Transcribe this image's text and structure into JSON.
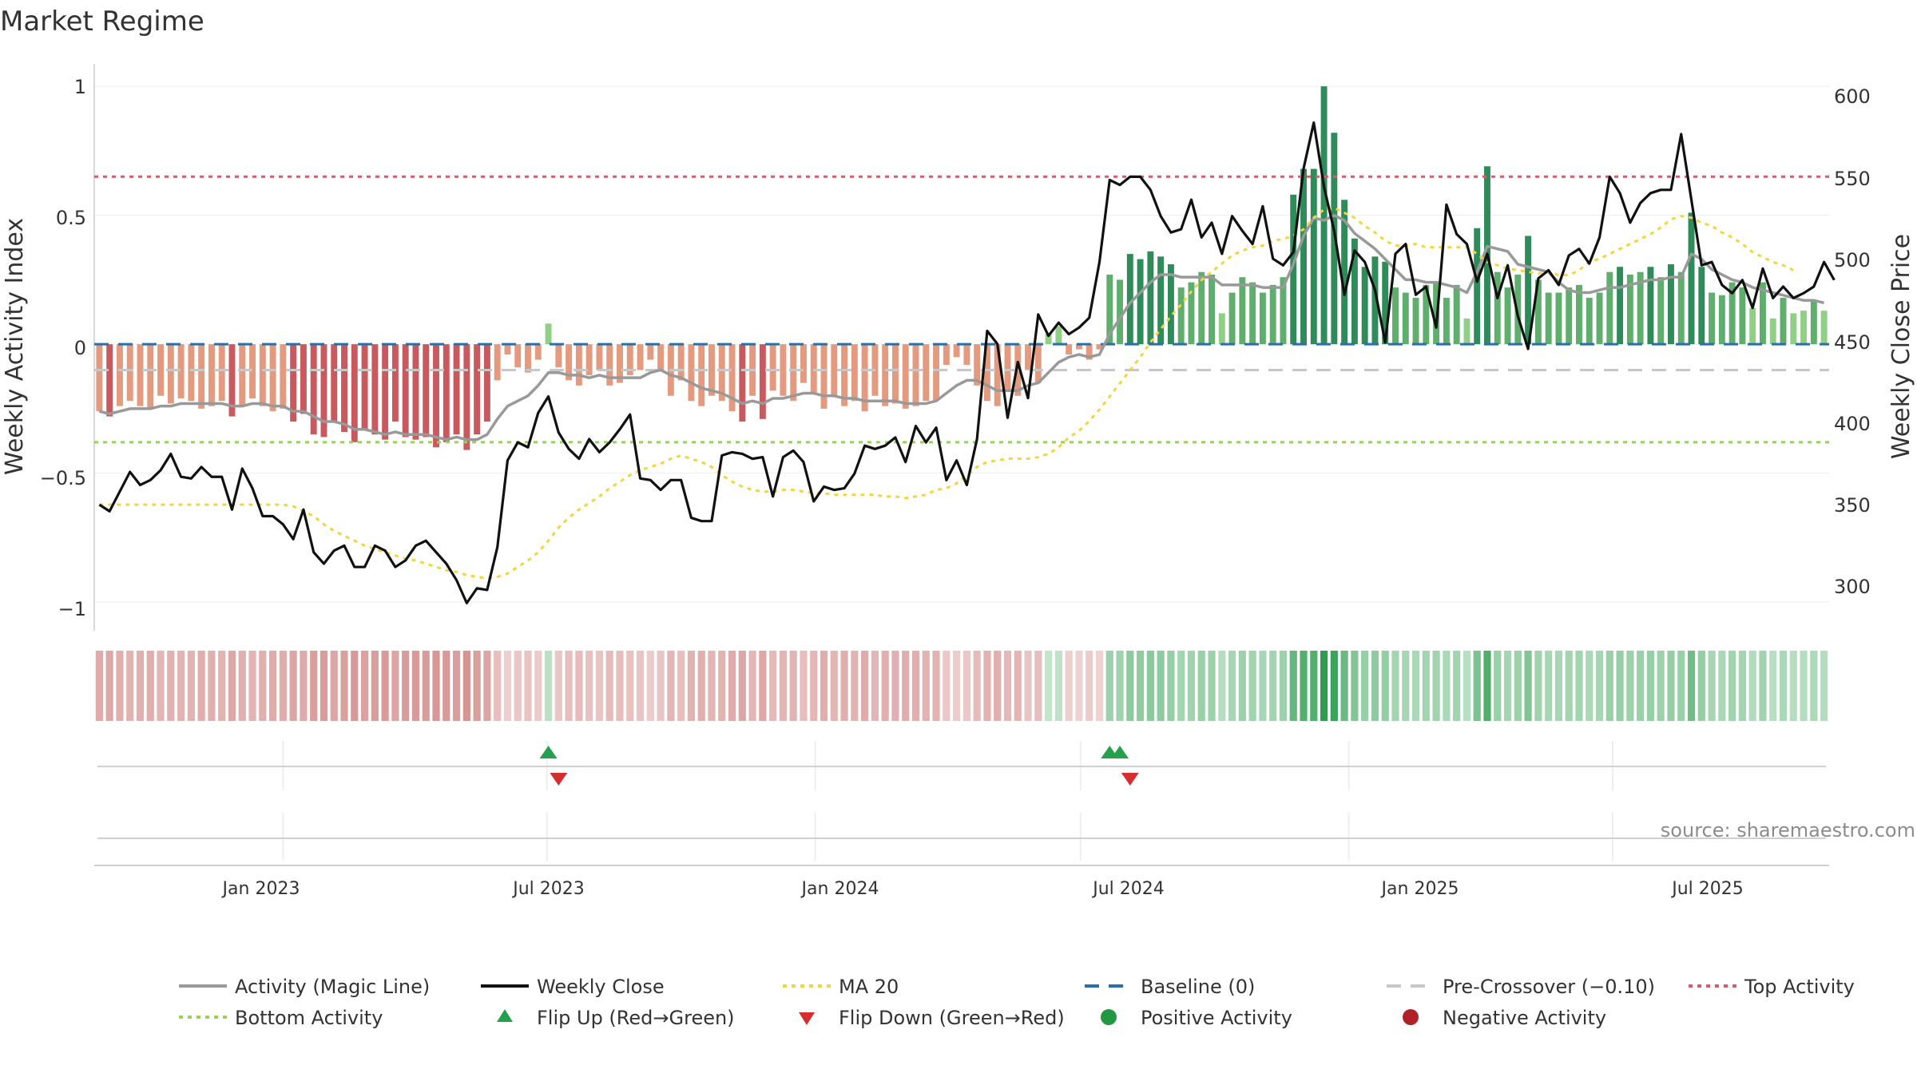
{
  "chart_data": {
    "type": "bar",
    "title": "Market Regime",
    "source": "source: sharemaestro.com",
    "ylabel_left": "Weekly Activity Index",
    "ylabel_right": "Weekly Close Price",
    "left_yticks": [
      "1",
      "0.5",
      "0",
      "−1",
      "−0.5"
    ],
    "left_ytick_values": [
      1,
      0.5,
      0,
      -1,
      -0.5
    ],
    "right_yticks": [
      "600",
      "550",
      "500",
      "450",
      "400",
      "350",
      "300"
    ],
    "right_ytick_values": [
      600,
      550,
      500,
      450,
      400,
      350,
      300
    ],
    "x_ticks": [
      "Jan 2023",
      "Jul 2023",
      "Jan 2024",
      "Jul 2024",
      "Jan 2025",
      "Jul 2025"
    ],
    "x_tick_values": [
      "2023-01-01",
      "2023-07-01",
      "2024-01-01",
      "2024-07-01",
      "2025-01-01",
      "2025-07-01"
    ],
    "ylim_left": [
      -1.08,
      1.05
    ],
    "ylim_right": [
      280,
      615
    ],
    "x_start": "2022-08-28",
    "weeks": 161,
    "activity_index": [
      -0.26,
      -0.28,
      -0.24,
      -0.22,
      -0.24,
      -0.25,
      -0.2,
      -0.23,
      -0.21,
      -0.22,
      -0.25,
      -0.24,
      -0.22,
      -0.28,
      -0.24,
      -0.21,
      -0.24,
      -0.26,
      -0.25,
      -0.3,
      -0.27,
      -0.35,
      -0.36,
      -0.3,
      -0.34,
      -0.38,
      -0.33,
      -0.35,
      -0.37,
      -0.3,
      -0.36,
      -0.37,
      -0.36,
      -0.4,
      -0.38,
      -0.35,
      -0.41,
      -0.35,
      -0.3,
      -0.14,
      -0.04,
      -0.09,
      -0.11,
      -0.06,
      0.08,
      -0.09,
      -0.14,
      -0.16,
      -0.12,
      -0.1,
      -0.16,
      -0.15,
      -0.12,
      -0.1,
      -0.06,
      -0.1,
      -0.2,
      -0.14,
      -0.22,
      -0.24,
      -0.2,
      -0.22,
      -0.26,
      -0.3,
      -0.2,
      -0.29,
      -0.18,
      -0.2,
      -0.22,
      -0.15,
      -0.19,
      -0.25,
      -0.2,
      -0.24,
      -0.22,
      -0.26,
      -0.2,
      -0.24,
      -0.23,
      -0.25,
      -0.24,
      -0.22,
      -0.22,
      -0.08,
      -0.05,
      -0.08,
      -0.16,
      -0.22,
      -0.24,
      -0.18,
      -0.2,
      -0.1,
      -0.15,
      0.04,
      0.07,
      -0.04,
      -0.02,
      -0.06,
      -0.02,
      0.27,
      0.25,
      0.35,
      0.33,
      0.36,
      0.34,
      0.31,
      0.22,
      0.24,
      0.28,
      0.27,
      0.12,
      0.2,
      0.26,
      0.24,
      0.2,
      0.23,
      0.26,
      0.58,
      0.68,
      0.68,
      1.0,
      0.82,
      0.56,
      0.41,
      0.3,
      0.34,
      0.32,
      0.22,
      0.2,
      0.18,
      0.23,
      0.24,
      0.18,
      0.23,
      0.1,
      0.45,
      0.69,
      0.28,
      0.22,
      0.27,
      0.42,
      0.25,
      0.2,
      0.2,
      0.22,
      0.23,
      0.18,
      0.2,
      0.28,
      0.3,
      0.27,
      0.28,
      0.3,
      0.26,
      0.31,
      0.28,
      0.51,
      0.3,
      0.2,
      0.19,
      0.24,
      0.22,
      0.14,
      0.24,
      0.1,
      0.18,
      0.12,
      0.13,
      0.17,
      0.13
    ],
    "magic_line": [
      -0.26,
      -0.27,
      -0.26,
      -0.25,
      -0.25,
      -0.25,
      -0.24,
      -0.24,
      -0.23,
      -0.23,
      -0.23,
      -0.23,
      -0.23,
      -0.24,
      -0.24,
      -0.23,
      -0.23,
      -0.24,
      -0.24,
      -0.26,
      -0.26,
      -0.28,
      -0.3,
      -0.3,
      -0.31,
      -0.33,
      -0.33,
      -0.34,
      -0.35,
      -0.34,
      -0.35,
      -0.35,
      -0.35,
      -0.36,
      -0.37,
      -0.36,
      -0.37,
      -0.37,
      -0.35,
      -0.29,
      -0.24,
      -0.22,
      -0.2,
      -0.16,
      -0.11,
      -0.11,
      -0.12,
      -0.12,
      -0.13,
      -0.12,
      -0.13,
      -0.13,
      -0.13,
      -0.13,
      -0.11,
      -0.1,
      -0.12,
      -0.13,
      -0.15,
      -0.17,
      -0.18,
      -0.19,
      -0.21,
      -0.23,
      -0.22,
      -0.23,
      -0.21,
      -0.21,
      -0.2,
      -0.19,
      -0.19,
      -0.2,
      -0.2,
      -0.21,
      -0.21,
      -0.22,
      -0.22,
      -0.22,
      -0.22,
      -0.23,
      -0.23,
      -0.23,
      -0.22,
      -0.19,
      -0.16,
      -0.14,
      -0.14,
      -0.16,
      -0.18,
      -0.18,
      -0.18,
      -0.16,
      -0.15,
      -0.11,
      -0.07,
      -0.05,
      -0.04,
      -0.05,
      -0.04,
      0.04,
      0.1,
      0.16,
      0.2,
      0.24,
      0.27,
      0.27,
      0.26,
      0.26,
      0.26,
      0.26,
      0.23,
      0.23,
      0.23,
      0.23,
      0.22,
      0.22,
      0.22,
      0.31,
      0.42,
      0.49,
      0.48,
      0.5,
      0.48,
      0.43,
      0.4,
      0.37,
      0.33,
      0.29,
      0.25,
      0.25,
      0.24,
      0.24,
      0.23,
      0.22,
      0.2,
      0.28,
      0.38,
      0.37,
      0.36,
      0.31,
      0.3,
      0.29,
      0.28,
      0.24,
      0.21,
      0.2,
      0.2,
      0.21,
      0.22,
      0.22,
      0.23,
      0.24,
      0.25,
      0.25,
      0.26,
      0.26,
      0.35,
      0.33,
      0.29,
      0.27,
      0.25,
      0.24,
      0.22,
      0.21,
      0.2,
      0.19,
      0.18,
      0.17,
      0.17,
      0.16
    ],
    "weekly_close": [
      352,
      348,
      360,
      372,
      364,
      367,
      373,
      383,
      369,
      368,
      375,
      369,
      369,
      349,
      374,
      362,
      345,
      345,
      340,
      331,
      349,
      323,
      316,
      324,
      327,
      314,
      314,
      327,
      324,
      314,
      318,
      327,
      330,
      323,
      316,
      306,
      292,
      301,
      300,
      326,
      379,
      390,
      387,
      408,
      418,
      396,
      386,
      380,
      392,
      384,
      390,
      398,
      407,
      368,
      367,
      361,
      367,
      367,
      344,
      342,
      342,
      382,
      384,
      383,
      380,
      381,
      357,
      381,
      385,
      378,
      354,
      363,
      361,
      362,
      371,
      388,
      386,
      388,
      393,
      378,
      400,
      390,
      399,
      367,
      379,
      364,
      392,
      458,
      450,
      405,
      439,
      417,
      468,
      455,
      463,
      456,
      460,
      466,
      500,
      550,
      547,
      552,
      552,
      544,
      528,
      518,
      520,
      538,
      515,
      524,
      505,
      528,
      519,
      511,
      534,
      502,
      498,
      506,
      557,
      585,
      546,
      519,
      480,
      507,
      500,
      483,
      451,
      505,
      511,
      480,
      485,
      460,
      535,
      517,
      511,
      488,
      505,
      478,
      498,
      467,
      447,
      490,
      495,
      486,
      504,
      508,
      499,
      515,
      552,
      542,
      524,
      536,
      542,
      544,
      544,
      578,
      538,
      498,
      500,
      486,
      481,
      489,
      472,
      496,
      478,
      485,
      478,
      481,
      485,
      500,
      489
    ],
    "ma20": [
      352,
      352,
      352,
      352,
      352,
      352,
      352,
      352,
      352,
      352,
      352,
      352,
      352,
      352,
      352,
      352,
      352,
      352,
      352,
      351,
      348,
      345,
      340,
      336,
      333,
      330,
      327,
      325,
      323,
      321,
      319,
      318,
      316,
      314,
      312,
      311,
      309,
      308,
      307,
      308,
      310,
      314,
      318,
      323,
      330,
      338,
      344,
      349,
      353,
      357,
      362,
      366,
      370,
      373,
      375,
      377,
      380,
      382,
      380,
      378,
      375,
      370,
      366,
      363,
      361,
      360,
      360,
      361,
      361,
      360,
      359,
      359,
      358,
      358,
      358,
      358,
      358,
      357,
      357,
      356,
      357,
      358,
      361,
      362,
      365,
      370,
      375,
      378,
      379,
      380,
      380,
      380,
      381,
      383,
      387,
      393,
      397,
      403,
      410,
      418,
      426,
      434,
      442,
      451,
      459,
      467,
      474,
      482,
      489,
      494,
      499,
      504,
      507,
      509,
      510,
      513,
      514,
      516,
      520,
      527,
      532,
      533,
      530,
      527,
      522,
      518,
      513,
      510,
      510,
      511,
      509,
      509,
      509,
      509,
      509,
      505,
      500,
      498,
      496,
      495,
      494,
      493,
      494,
      492,
      492,
      495,
      500,
      502,
      505,
      508,
      511,
      514,
      517,
      521,
      526,
      528,
      527,
      524,
      522,
      518,
      515,
      511,
      506,
      503,
      500,
      498,
      495
    ],
    "baseline": 0,
    "pre_crossover": -0.1,
    "top_activity": 0.65,
    "bottom_activity": -0.38,
    "flip_up_weeks": [
      44,
      99,
      100
    ],
    "flip_down_weeks": [
      45,
      101
    ],
    "legend": [
      {
        "label": "Activity (Magic Line)",
        "kind": "line",
        "color": "#999999",
        "dash": "none"
      },
      {
        "label": "Weekly Close",
        "kind": "line",
        "color": "#111111",
        "dash": "none"
      },
      {
        "label": "MA 20",
        "kind": "line",
        "color": "#f1d541",
        "dash": "dot"
      },
      {
        "label": "Baseline (0)",
        "kind": "line",
        "color": "#2b6fa8",
        "dash": "dash"
      },
      {
        "label": "Pre-Crossover (−0.10)",
        "kind": "line",
        "color": "#c7c7c7",
        "dash": "dash"
      },
      {
        "label": "Top Activity",
        "kind": "line",
        "color": "#d45d6f",
        "dash": "dot"
      },
      {
        "label": "Bottom Activity",
        "kind": "line",
        "color": "#9bd05b",
        "dash": "dot"
      },
      {
        "label": "Flip Up (Red→Green)",
        "kind": "tri-up",
        "color": "#25a04c",
        "dash": "none"
      },
      {
        "label": "Flip Down (Green→Red)",
        "kind": "tri-down",
        "color": "#d62e2e",
        "dash": "none"
      },
      {
        "label": "Positive Activity",
        "kind": "dot",
        "color": "#239843",
        "dash": "none"
      },
      {
        "label": "Negative Activity",
        "kind": "dot",
        "color": "#ae2228",
        "dash": "none"
      }
    ]
  }
}
